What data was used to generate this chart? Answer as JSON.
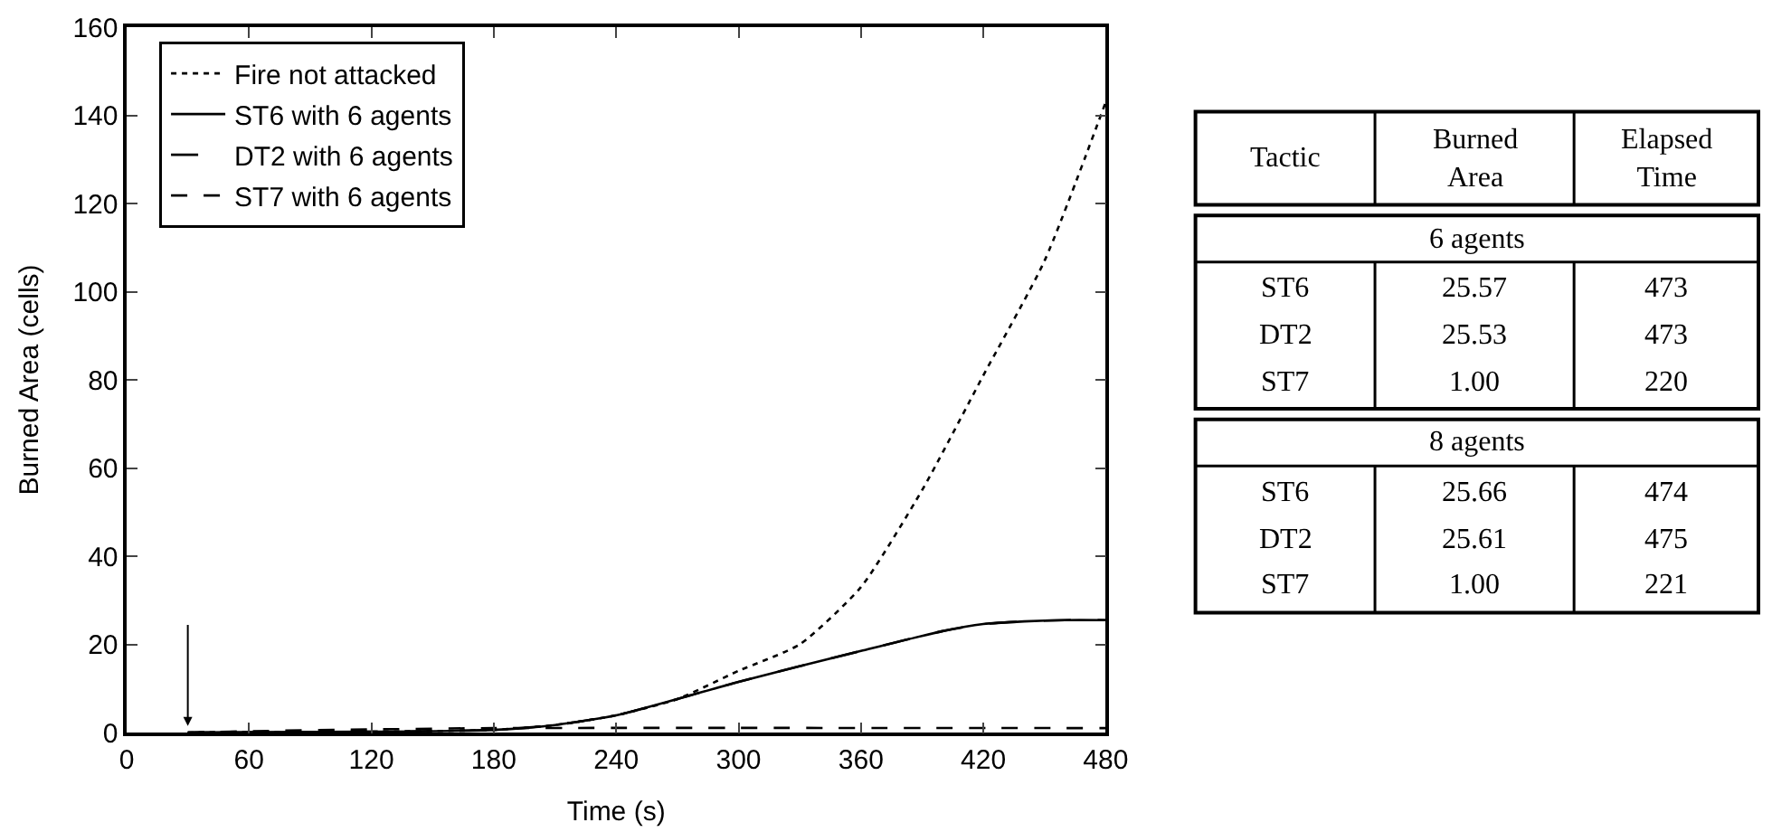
{
  "chart_data": [
    {
      "type": "line",
      "xlabel": "Time (s)",
      "ylabel": "Burned Area (cells)",
      "xlim": [
        0,
        480
      ],
      "xticks": [
        0,
        60,
        120,
        180,
        240,
        300,
        360,
        420,
        480
      ],
      "ylim": [
        0,
        160
      ],
      "yticks": [
        0,
        20,
        40,
        60,
        80,
        100,
        120,
        140,
        160
      ],
      "legend": "top left",
      "marker": "none",
      "series": [
        {
          "name": "Fire not attacked",
          "color": "#000000",
          "line_style": "dotted",
          "x": [
            30,
            60,
            120,
            180,
            210,
            240,
            270,
            300,
            330,
            360,
            390,
            420,
            450,
            480
          ],
          "values": [
            0,
            0.1,
            0.2,
            0.6,
            1.7,
            3.9,
            7.6,
            14,
            20,
            33,
            55,
            81,
            107,
            143
          ]
        },
        {
          "name": "ST6 with 6 agents",
          "color": "#000000",
          "line_style": "solid",
          "x": [
            30,
            60,
            120,
            180,
            210,
            240,
            270,
            300,
            360,
            400,
            420,
            440,
            460,
            480
          ],
          "values": [
            0,
            0.1,
            0.2,
            0.6,
            1.7,
            3.9,
            7.6,
            11.5,
            18.5,
            23,
            24.6,
            25.2,
            25.5,
            25.5
          ]
        },
        {
          "name": "DT2 with 6 agents",
          "color": "#000000",
          "line_style": "dashed",
          "x": [
            30,
            60,
            120,
            180,
            210,
            240,
            270,
            300,
            360,
            400,
            420,
            440,
            460,
            480
          ],
          "values": [
            0,
            0.1,
            0.2,
            0.6,
            1.7,
            3.9,
            7.6,
            11.5,
            18.5,
            23,
            24.6,
            25.2,
            25.5,
            25.5
          ]
        },
        {
          "name": "ST7 with 6 agents",
          "color": "#000000",
          "line_style": "dotdash",
          "x": [
            30,
            60,
            120,
            180,
            480
          ],
          "values": [
            0,
            0.3,
            0.7,
            1,
            1
          ]
        }
      ]
    },
    {
      "type": "other",
      "annotations": [
        "Tactic",
        "Burned Area",
        "Elapsed Time",
        "6 agents",
        "ST6",
        "25.57",
        "473",
        "DT2",
        "25.53",
        "473",
        "ST7",
        "1.00",
        "220",
        "8 agents",
        "ST6",
        "25.66",
        "474",
        "DT2",
        "25.61",
        "475",
        "ST7",
        "1.00",
        "221"
      ]
    }
  ]
}
